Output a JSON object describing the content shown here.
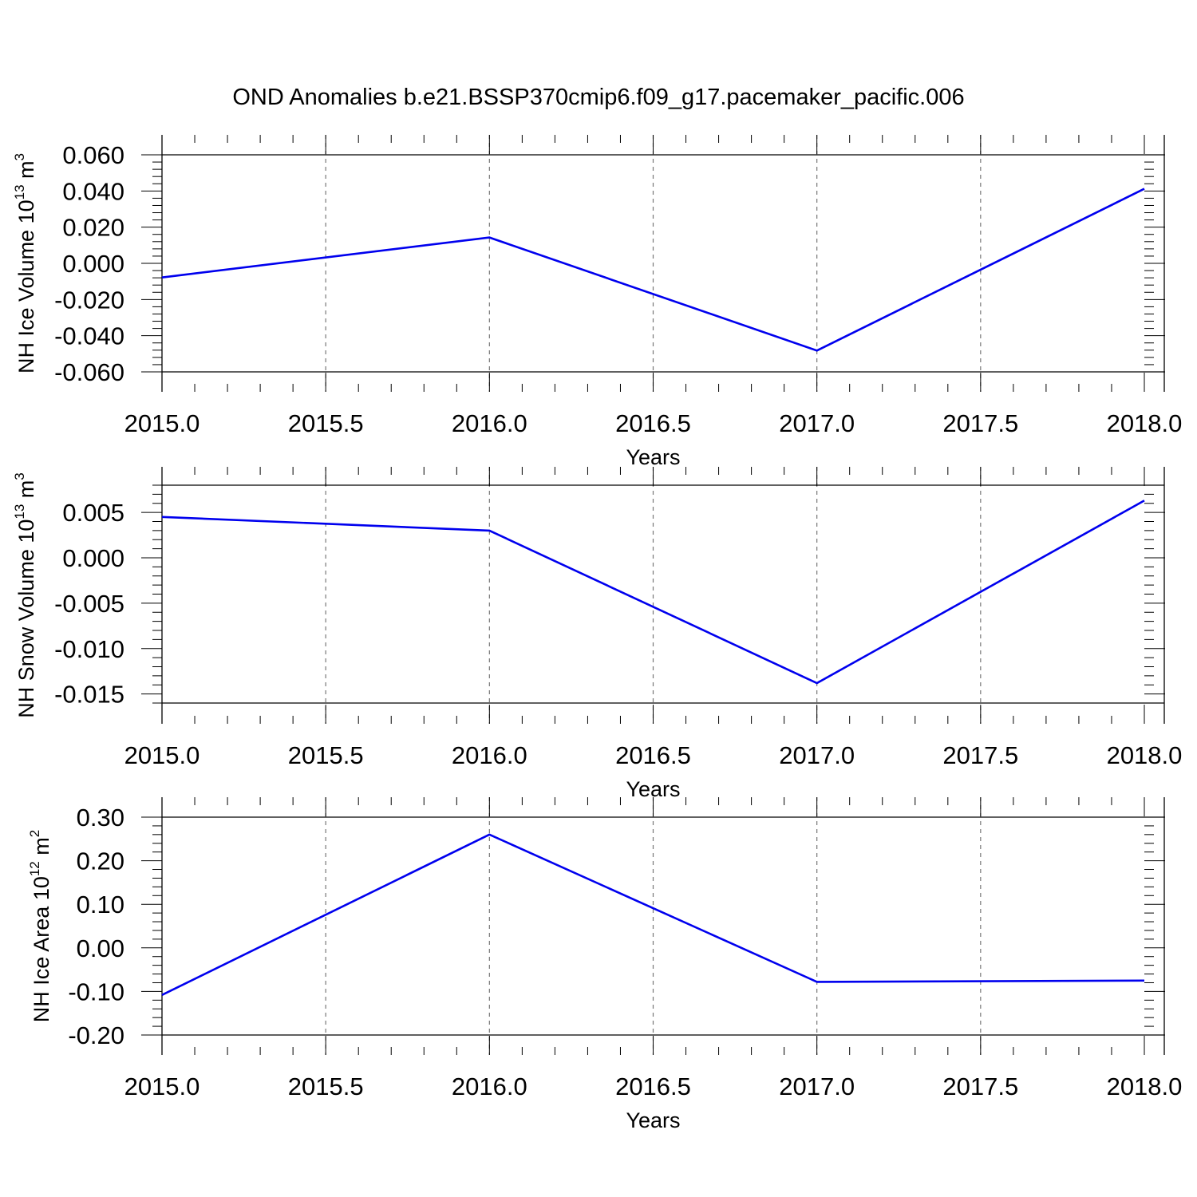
{
  "title": "OND Anomalies b.e21.BSSP370cmip6.f09_g17.pacemaker_pacific.006",
  "chart_data": [
    {
      "type": "line",
      "xlabel": "Years",
      "ylabel": {
        "main": "NH Ice Volume 10",
        "exp": "13",
        "unit": " m",
        "unit_exp": "3"
      },
      "x_ticks": [
        2015.0,
        2015.5,
        2016.0,
        2016.5,
        2017.0,
        2017.5,
        2018.0
      ],
      "x_tick_labels": [
        "2015.0",
        "2015.5",
        "2016.0",
        "2016.5",
        "2017.0",
        "2017.5",
        "2018.0"
      ],
      "xlim": [
        2015.0,
        2018.0
      ],
      "y_ticks": [
        -0.06,
        -0.04,
        -0.02,
        0.0,
        0.02,
        0.04,
        0.06
      ],
      "y_tick_labels": [
        "-0.060",
        "-0.040",
        "-0.020",
        "0.000",
        "0.020",
        "0.040",
        "0.060"
      ],
      "ylim": [
        -0.06,
        0.06
      ],
      "grid": "vertical dashed",
      "series": [
        {
          "color": "#0000ee",
          "x": [
            2015,
            2016,
            2017,
            2018
          ],
          "y": [
            -0.0078,
            0.0143,
            -0.0482,
            0.0412
          ]
        }
      ]
    },
    {
      "type": "line",
      "xlabel": "Years",
      "ylabel": {
        "main": "NH Snow Volume 10",
        "exp": "13",
        "unit": " m",
        "unit_exp": "3"
      },
      "x_ticks": [
        2015.0,
        2015.5,
        2016.0,
        2016.5,
        2017.0,
        2017.5,
        2018.0
      ],
      "x_tick_labels": [
        "2015.0",
        "2015.5",
        "2016.0",
        "2016.5",
        "2017.0",
        "2017.5",
        "2018.0"
      ],
      "xlim": [
        2015.0,
        2018.0
      ],
      "y_ticks": [
        -0.015,
        -0.01,
        -0.005,
        0.0,
        0.005
      ],
      "y_tick_labels": [
        "-0.015",
        "-0.010",
        "-0.005",
        "0.000",
        "0.005"
      ],
      "ylim": [
        -0.016,
        0.008
      ],
      "grid": "vertical dashed",
      "series": [
        {
          "color": "#0000ee",
          "x": [
            2015,
            2016,
            2017,
            2018
          ],
          "y": [
            0.0045,
            0.003,
            -0.0138,
            0.0063
          ]
        }
      ]
    },
    {
      "type": "line",
      "xlabel": "Years",
      "ylabel": {
        "main": "NH Ice Area 10",
        "exp": "12",
        "unit": " m",
        "unit_exp": "2"
      },
      "x_ticks": [
        2015.0,
        2015.5,
        2016.0,
        2016.5,
        2017.0,
        2017.5,
        2018.0
      ],
      "x_tick_labels": [
        "2015.0",
        "2015.5",
        "2016.0",
        "2016.5",
        "2017.0",
        "2017.5",
        "2018.0"
      ],
      "xlim": [
        2015.0,
        2018.0
      ],
      "y_ticks": [
        -0.2,
        -0.1,
        0.0,
        0.1,
        0.2,
        0.3
      ],
      "y_tick_labels": [
        "-0.20",
        "-0.10",
        "0.00",
        "0.10",
        "0.20",
        "0.30"
      ],
      "ylim": [
        -0.2,
        0.3
      ],
      "grid": "vertical dashed",
      "series": [
        {
          "color": "#0000ee",
          "x": [
            2015,
            2016,
            2017,
            2018
          ],
          "y": [
            -0.108,
            0.26,
            -0.078,
            -0.075
          ]
        }
      ]
    }
  ]
}
